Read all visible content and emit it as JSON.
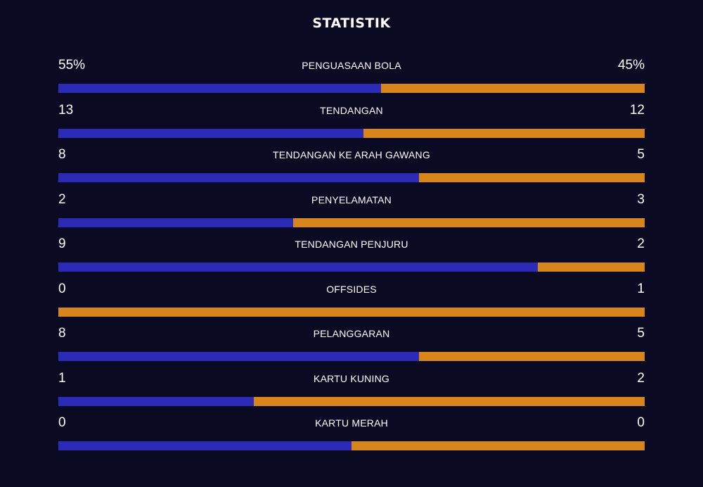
{
  "title": "STATISTIK",
  "colors": {
    "background": "#0a0a23",
    "home": "#2b2bb8",
    "away": "#d8851c",
    "text": "#ffffff"
  },
  "stats": [
    {
      "label": "PENGUASAAN BOLA",
      "home": "55%",
      "away": "45%",
      "home_share": 0.55
    },
    {
      "label": "TENDANGAN",
      "home": "13",
      "away": "12",
      "home_share": 0.52
    },
    {
      "label": "TENDANGAN KE ARAH GAWANG",
      "home": "8",
      "away": "5",
      "home_share": 0.615
    },
    {
      "label": "PENYELAMATAN",
      "home": "2",
      "away": "3",
      "home_share": 0.4
    },
    {
      "label": "TENDANGAN PENJURU",
      "home": "9",
      "away": "2",
      "home_share": 0.818
    },
    {
      "label": "OFFSIDES",
      "home": "0",
      "away": "1",
      "home_share": 0.0
    },
    {
      "label": "PELANGGARAN",
      "home": "8",
      "away": "5",
      "home_share": 0.615
    },
    {
      "label": "KARTU KUNING",
      "home": "1",
      "away": "2",
      "home_share": 0.333
    },
    {
      "label": "KARTU MERAH",
      "home": "0",
      "away": "0",
      "home_share": 0.5
    }
  ]
}
